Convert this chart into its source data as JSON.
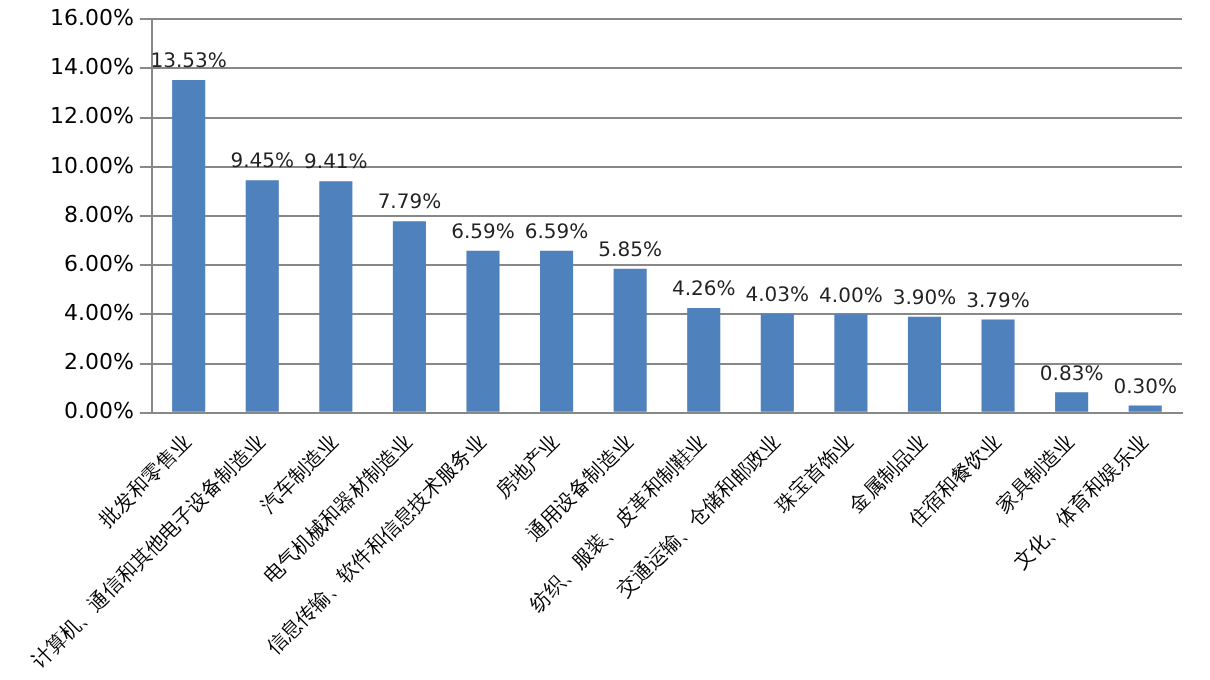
{
  "chart_data": {
    "type": "bar",
    "categories": [
      "批发和零售业",
      "计算机、通信和其他电子设备制造业",
      "汽车制造业",
      "电气机械和器材制造业",
      "信息传输、软件和信息技术服务业",
      "房地产业",
      "通用设备制造业",
      "纺织、服装、皮革和制鞋业",
      "交通运输、仓储和邮政业",
      "珠宝首饰业",
      "金属制品业",
      "住宿和餐饮业",
      "家具制造业",
      "文化、体育和娱乐业"
    ],
    "values": [
      13.53,
      9.45,
      9.41,
      7.79,
      6.59,
      6.59,
      5.85,
      4.26,
      4.03,
      4.0,
      3.9,
      3.79,
      0.83,
      0.3
    ],
    "value_labels": [
      "13.53%",
      "9.45%",
      "9.41%",
      "7.79%",
      "6.59%",
      "6.59%",
      "5.85%",
      "4.26%",
      "4.03%",
      "4.00%",
      "3.90%",
      "3.79%",
      "0.83%",
      "0.30%"
    ],
    "color": "#4f81bd",
    "ylim": [
      0,
      16
    ],
    "yticks": [
      {
        "value": 0,
        "label": "0.00%"
      },
      {
        "value": 2,
        "label": "2.00%"
      },
      {
        "value": 4,
        "label": "4.00%"
      },
      {
        "value": 6,
        "label": "6.00%"
      },
      {
        "value": 8,
        "label": "8.00%"
      },
      {
        "value": 10,
        "label": "10.00%"
      },
      {
        "value": 12,
        "label": "12.00%"
      },
      {
        "value": 14,
        "label": "14.00%"
      },
      {
        "value": 16,
        "label": "16.00%"
      }
    ],
    "grid": "y",
    "legend": false
  }
}
